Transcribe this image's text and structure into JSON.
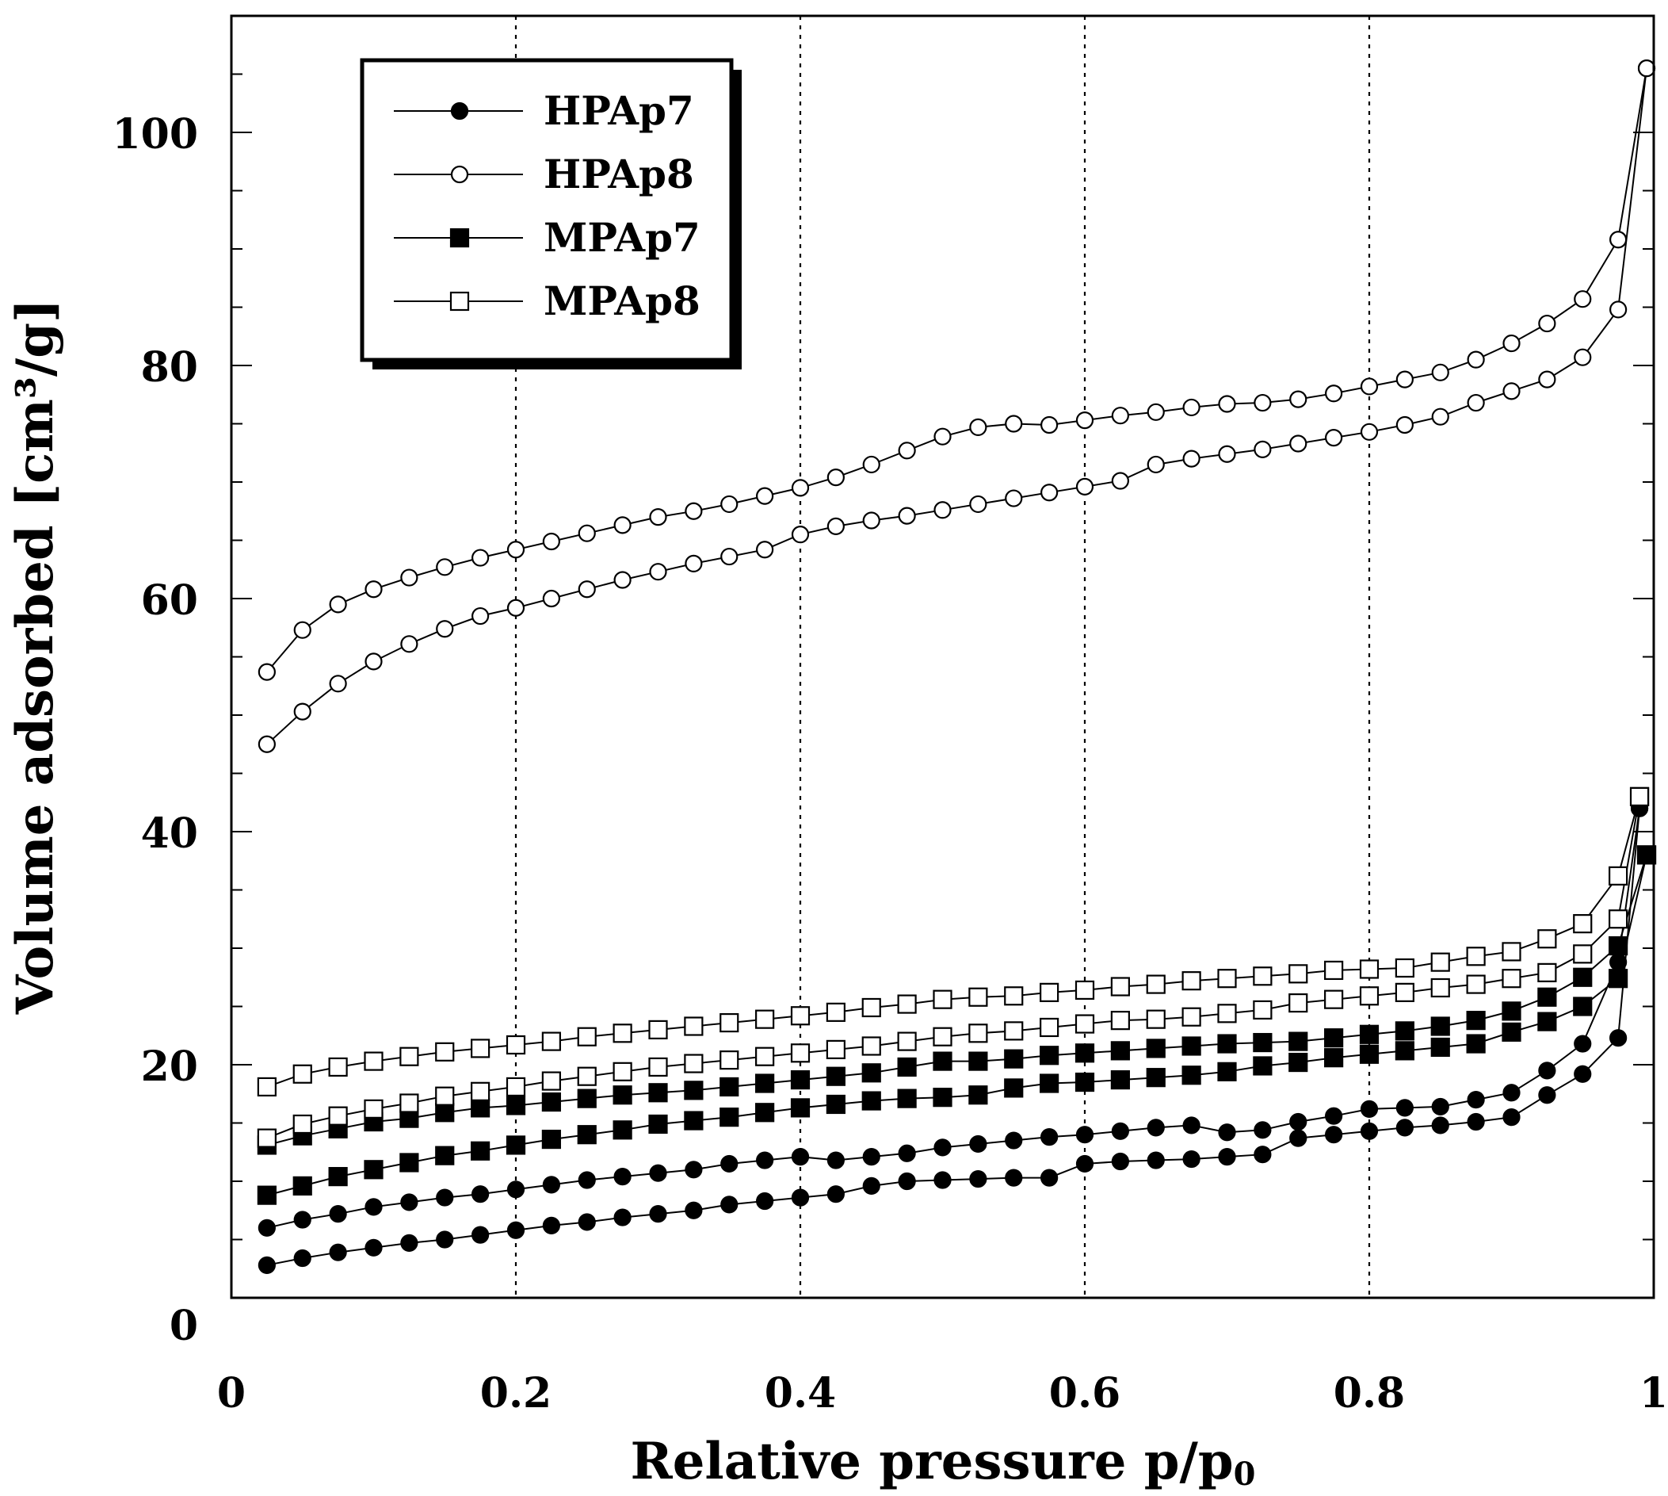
{
  "chart_data": {
    "type": "line",
    "title": "",
    "xlabel": "Relative pressure p/p",
    "xlabel_subscript": "0",
    "ylabel": "Volume adsorbed [cm³/g]",
    "xlim": [
      0,
      1
    ],
    "ylim": [
      0,
      110
    ],
    "xticks": [
      0,
      0.2,
      0.4,
      0.6,
      0.8,
      1
    ],
    "xtick_labels": [
      "0",
      "0.2",
      "0.4",
      "0.6",
      "0.8",
      "1"
    ],
    "yticks": [
      0,
      20,
      40,
      60,
      80,
      100
    ],
    "ytick_labels": [
      "0",
      "20",
      "40",
      "60",
      "80",
      "100"
    ],
    "grid": "vertical dotted at 0.2, 0.4, 0.6, 0.8",
    "legend_position": "top-left",
    "series": [
      {
        "name": "HPAp7",
        "marker": "circle",
        "fill": "#000000",
        "adsorption": {
          "x": [
            0.025,
            0.05,
            0.075,
            0.1,
            0.125,
            0.15,
            0.175,
            0.2,
            0.225,
            0.25,
            0.275,
            0.3,
            0.325,
            0.35,
            0.375,
            0.4,
            0.425,
            0.45,
            0.475,
            0.5,
            0.525,
            0.55,
            0.575,
            0.6,
            0.625,
            0.65,
            0.675,
            0.7,
            0.725,
            0.75,
            0.775,
            0.8,
            0.825,
            0.85,
            0.875,
            0.9,
            0.925,
            0.95,
            0.975,
            0.99
          ],
          "y": [
            2.8,
            3.4,
            3.9,
            4.3,
            4.7,
            5.0,
            5.4,
            5.8,
            6.2,
            6.5,
            6.9,
            7.2,
            7.5,
            8.0,
            8.3,
            8.6,
            8.9,
            9.6,
            10.0,
            10.1,
            10.2,
            10.3,
            10.3,
            11.5,
            11.7,
            11.8,
            11.9,
            12.1,
            12.3,
            13.7,
            14.0,
            14.3,
            14.6,
            14.8,
            15.1,
            15.5,
            17.4,
            19.2,
            22.3,
            42.0
          ]
        },
        "desorption": {
          "x": [
            0.99,
            0.975,
            0.95,
            0.925,
            0.9,
            0.875,
            0.85,
            0.825,
            0.8,
            0.775,
            0.75,
            0.725,
            0.7,
            0.675,
            0.65,
            0.625,
            0.6,
            0.575,
            0.55,
            0.525,
            0.5,
            0.475,
            0.45,
            0.425,
            0.4,
            0.375,
            0.35,
            0.325,
            0.3,
            0.275,
            0.25,
            0.225,
            0.2,
            0.175,
            0.15,
            0.125,
            0.1,
            0.075,
            0.05,
            0.025
          ],
          "y": [
            42.0,
            28.8,
            21.8,
            19.5,
            17.6,
            17.0,
            16.4,
            16.3,
            16.2,
            15.6,
            15.1,
            14.4,
            14.2,
            14.8,
            14.6,
            14.3,
            14.0,
            13.8,
            13.5,
            13.2,
            12.9,
            12.4,
            12.1,
            11.8,
            12.1,
            11.8,
            11.5,
            11.0,
            10.7,
            10.4,
            10.1,
            9.7,
            9.3,
            8.9,
            8.6,
            8.2,
            7.8,
            7.2,
            6.7,
            6.0
          ]
        }
      },
      {
        "name": "HPAp8",
        "marker": "circle",
        "fill": "#ffffff",
        "adsorption": {
          "x": [
            0.025,
            0.05,
            0.075,
            0.1,
            0.125,
            0.15,
            0.175,
            0.2,
            0.225,
            0.25,
            0.275,
            0.3,
            0.325,
            0.35,
            0.375,
            0.4,
            0.425,
            0.45,
            0.475,
            0.5,
            0.525,
            0.55,
            0.575,
            0.6,
            0.625,
            0.65,
            0.675,
            0.7,
            0.725,
            0.75,
            0.775,
            0.8,
            0.825,
            0.85,
            0.875,
            0.9,
            0.925,
            0.95,
            0.975,
            0.995
          ],
          "y": [
            47.5,
            50.3,
            52.7,
            54.6,
            56.1,
            57.4,
            58.5,
            59.2,
            60.0,
            60.8,
            61.6,
            62.3,
            63.0,
            63.6,
            64.2,
            65.5,
            66.2,
            66.7,
            67.1,
            67.6,
            68.1,
            68.6,
            69.1,
            69.6,
            70.1,
            71.5,
            72.0,
            72.4,
            72.8,
            73.3,
            73.8,
            74.3,
            74.9,
            75.6,
            76.8,
            77.8,
            78.8,
            80.7,
            84.8,
            105.5
          ]
        },
        "desorption": {
          "x": [
            0.995,
            0.975,
            0.95,
            0.925,
            0.9,
            0.875,
            0.85,
            0.825,
            0.8,
            0.775,
            0.75,
            0.725,
            0.7,
            0.675,
            0.65,
            0.625,
            0.6,
            0.575,
            0.55,
            0.525,
            0.5,
            0.475,
            0.45,
            0.425,
            0.4,
            0.375,
            0.35,
            0.325,
            0.3,
            0.275,
            0.25,
            0.225,
            0.2,
            0.175,
            0.15,
            0.125,
            0.1,
            0.075,
            0.05,
            0.025
          ],
          "y": [
            105.5,
            90.8,
            85.7,
            83.6,
            81.9,
            80.5,
            79.4,
            78.8,
            78.2,
            77.6,
            77.1,
            76.8,
            76.7,
            76.4,
            76.0,
            75.7,
            75.3,
            74.9,
            75.0,
            74.7,
            73.9,
            72.7,
            71.5,
            70.4,
            69.5,
            68.8,
            68.1,
            67.5,
            67.0,
            66.3,
            65.6,
            64.9,
            64.2,
            63.5,
            62.7,
            61.8,
            60.8,
            59.5,
            57.3,
            53.7
          ]
        }
      },
      {
        "name": "MPAp7",
        "marker": "square",
        "fill": "#000000",
        "adsorption": {
          "x": [
            0.025,
            0.05,
            0.075,
            0.1,
            0.125,
            0.15,
            0.175,
            0.2,
            0.225,
            0.25,
            0.275,
            0.3,
            0.325,
            0.35,
            0.375,
            0.4,
            0.425,
            0.45,
            0.475,
            0.5,
            0.525,
            0.55,
            0.575,
            0.6,
            0.625,
            0.65,
            0.675,
            0.7,
            0.725,
            0.75,
            0.775,
            0.8,
            0.825,
            0.85,
            0.875,
            0.9,
            0.925,
            0.95,
            0.975,
            0.995
          ],
          "y": [
            8.8,
            9.6,
            10.4,
            11.0,
            11.6,
            12.2,
            12.6,
            13.1,
            13.6,
            14.0,
            14.4,
            14.9,
            15.2,
            15.5,
            15.9,
            16.3,
            16.6,
            16.9,
            17.1,
            17.2,
            17.4,
            18.0,
            18.4,
            18.5,
            18.7,
            18.9,
            19.1,
            19.4,
            19.9,
            20.2,
            20.6,
            20.9,
            21.2,
            21.5,
            21.8,
            22.8,
            23.7,
            25.0,
            27.4,
            38.0
          ]
        },
        "desorption": {
          "x": [
            0.995,
            0.975,
            0.95,
            0.925,
            0.9,
            0.875,
            0.85,
            0.825,
            0.8,
            0.775,
            0.75,
            0.725,
            0.7,
            0.675,
            0.65,
            0.625,
            0.6,
            0.575,
            0.55,
            0.525,
            0.5,
            0.475,
            0.45,
            0.425,
            0.4,
            0.375,
            0.35,
            0.325,
            0.3,
            0.275,
            0.25,
            0.225,
            0.2,
            0.175,
            0.15,
            0.125,
            0.1,
            0.075,
            0.05,
            0.025
          ],
          "y": [
            38.0,
            30.2,
            27.5,
            25.8,
            24.6,
            23.8,
            23.3,
            22.9,
            22.6,
            22.3,
            22.0,
            21.9,
            21.8,
            21.6,
            21.4,
            21.2,
            21.0,
            20.8,
            20.5,
            20.3,
            20.3,
            19.8,
            19.3,
            19.0,
            18.7,
            18.4,
            18.1,
            17.8,
            17.6,
            17.4,
            17.1,
            16.8,
            16.5,
            16.3,
            15.9,
            15.4,
            15.1,
            14.5,
            13.9,
            13.1
          ]
        }
      },
      {
        "name": "MPAp8",
        "marker": "square",
        "fill": "#ffffff",
        "adsorption": {
          "x": [
            0.025,
            0.05,
            0.075,
            0.1,
            0.125,
            0.15,
            0.175,
            0.2,
            0.225,
            0.25,
            0.275,
            0.3,
            0.325,
            0.35,
            0.375,
            0.4,
            0.425,
            0.45,
            0.475,
            0.5,
            0.525,
            0.55,
            0.575,
            0.6,
            0.625,
            0.65,
            0.675,
            0.7,
            0.725,
            0.75,
            0.775,
            0.8,
            0.825,
            0.85,
            0.875,
            0.9,
            0.925,
            0.95,
            0.975,
            0.99
          ],
          "y": [
            13.7,
            14.9,
            15.6,
            16.2,
            16.7,
            17.3,
            17.7,
            18.1,
            18.6,
            19.0,
            19.4,
            19.8,
            20.1,
            20.4,
            20.7,
            21.0,
            21.3,
            21.6,
            22.0,
            22.4,
            22.7,
            22.9,
            23.2,
            23.5,
            23.8,
            23.9,
            24.1,
            24.4,
            24.7,
            25.3,
            25.6,
            25.9,
            26.2,
            26.6,
            26.9,
            27.4,
            27.9,
            29.5,
            32.5,
            43.0
          ]
        },
        "desorption": {
          "x": [
            0.99,
            0.975,
            0.95,
            0.925,
            0.9,
            0.875,
            0.85,
            0.825,
            0.8,
            0.775,
            0.75,
            0.725,
            0.7,
            0.675,
            0.65,
            0.625,
            0.6,
            0.575,
            0.55,
            0.525,
            0.5,
            0.475,
            0.45,
            0.425,
            0.4,
            0.375,
            0.35,
            0.325,
            0.3,
            0.275,
            0.25,
            0.225,
            0.2,
            0.175,
            0.15,
            0.125,
            0.1,
            0.075,
            0.05,
            0.025
          ],
          "y": [
            43.0,
            36.2,
            32.1,
            30.8,
            29.7,
            29.3,
            28.8,
            28.3,
            28.2,
            28.1,
            27.8,
            27.6,
            27.4,
            27.2,
            26.9,
            26.7,
            26.4,
            26.2,
            25.9,
            25.8,
            25.6,
            25.2,
            24.9,
            24.5,
            24.2,
            23.9,
            23.6,
            23.3,
            23.0,
            22.7,
            22.4,
            22.0,
            21.7,
            21.4,
            21.1,
            20.7,
            20.3,
            19.8,
            19.2,
            18.1
          ]
        }
      }
    ]
  }
}
